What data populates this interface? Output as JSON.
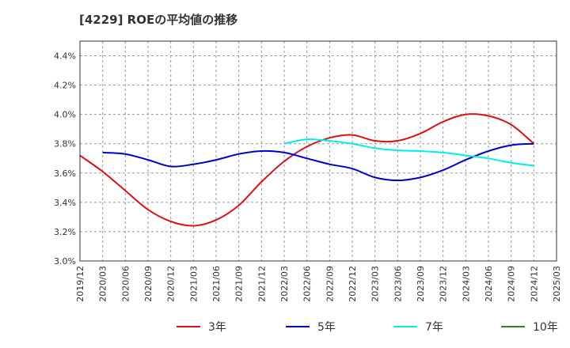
{
  "chart_data": {
    "type": "line",
    "title": "[4229]  ROEの平均値の推移",
    "xlabel": "",
    "ylabel": "",
    "ylim": [
      3.0,
      4.5
    ],
    "y_ticks": [
      "3.0%",
      "3.2%",
      "3.4%",
      "3.6%",
      "3.8%",
      "4.0%",
      "4.2%",
      "4.4%"
    ],
    "y_tick_values": [
      3.0,
      3.2,
      3.4,
      3.6,
      3.8,
      4.0,
      4.2,
      4.4
    ],
    "x_ticks": [
      "2019/12",
      "2020/03",
      "2020/06",
      "2020/09",
      "2020/12",
      "2021/03",
      "2021/06",
      "2021/09",
      "2021/12",
      "2022/03",
      "2022/06",
      "2022/09",
      "2022/12",
      "2023/03",
      "2023/06",
      "2023/09",
      "2023/12",
      "2024/03",
      "2024/06",
      "2024/09",
      "2024/12",
      "2025/03"
    ],
    "grid": true,
    "legend_position": "bottom",
    "series": [
      {
        "name": "3年",
        "color": "#dd1111",
        "start_index": 0,
        "values": [
          3.72,
          3.61,
          3.48,
          3.35,
          3.27,
          3.24,
          3.28,
          3.38,
          3.54,
          3.68,
          3.78,
          3.84,
          3.86,
          3.82,
          3.82,
          3.87,
          3.95,
          4.0,
          3.99,
          3.93,
          3.8
        ]
      },
      {
        "name": "5年",
        "color": "#0000cc",
        "start_index": 1,
        "values": [
          3.74,
          3.73,
          3.69,
          3.645,
          3.66,
          3.69,
          3.73,
          3.75,
          3.74,
          3.7,
          3.66,
          3.63,
          3.57,
          3.55,
          3.57,
          3.62,
          3.69,
          3.75,
          3.79,
          3.8
        ]
      },
      {
        "name": "7年",
        "color": "#00eeee",
        "start_index": 9,
        "values": [
          3.8,
          3.83,
          3.82,
          3.8,
          3.77,
          3.755,
          3.75,
          3.74,
          3.72,
          3.7,
          3.67,
          3.65
        ]
      },
      {
        "name": "10年",
        "color": "#228822",
        "start_index": 0,
        "values": []
      }
    ]
  }
}
